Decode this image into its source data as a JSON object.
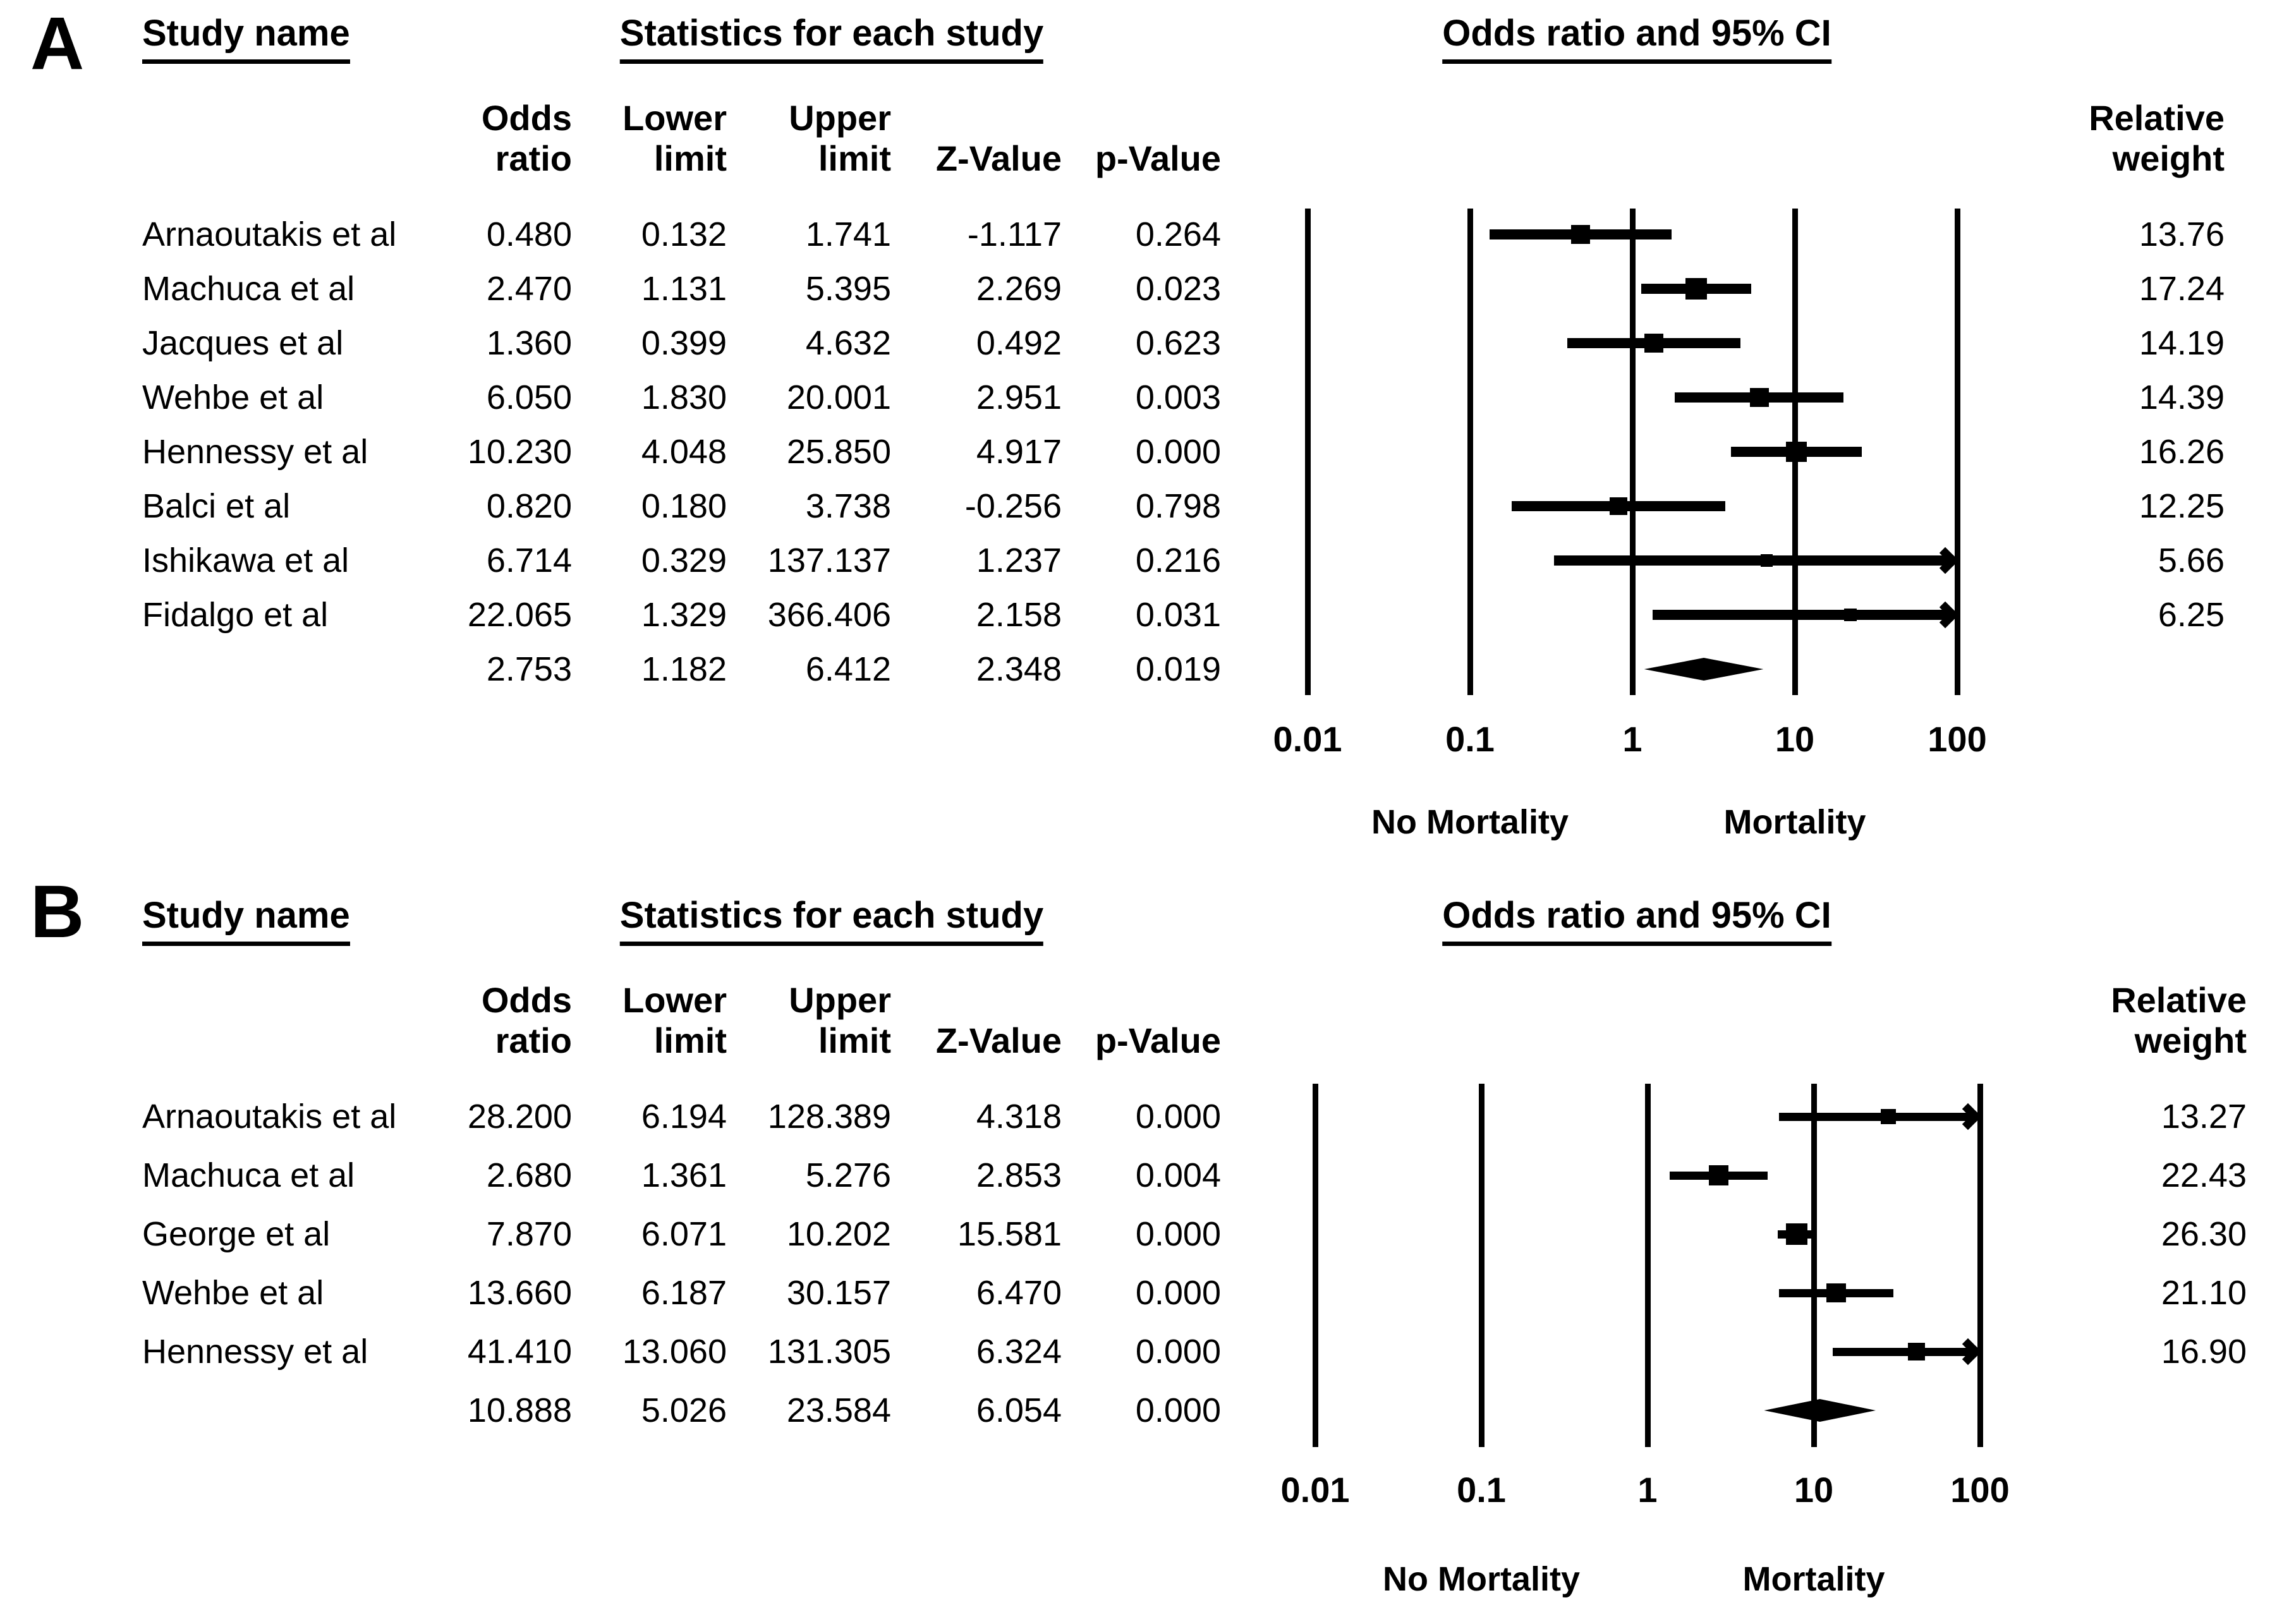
{
  "figure": {
    "background_color": "#ffffff",
    "ink_color": "#000000"
  },
  "panels": [
    {
      "label": "A",
      "headers": {
        "study": "Study name",
        "stats": "Statistics for each study",
        "plot": "Odds ratio and 95% CI"
      },
      "columns": {
        "or": [
          "Odds",
          "ratio"
        ],
        "ll": [
          "Lower",
          "limit"
        ],
        "ul": [
          "Upper",
          "limit"
        ],
        "z": "Z-Value",
        "p": "p-Value",
        "weight": [
          "Relative",
          "weight"
        ]
      },
      "axis": {
        "ticks": [
          "0.01",
          "0.1",
          "1",
          "10",
          "100"
        ],
        "left_label": "No Mortality",
        "right_label": "Mortality"
      },
      "rows": [
        {
          "name": "Arnaoutakis et al",
          "or": "0.480",
          "ll": "0.132",
          "ul": "1.741",
          "z": "-1.117",
          "p": "0.264",
          "weight": "13.76"
        },
        {
          "name": "Machuca et al",
          "or": "2.470",
          "ll": "1.131",
          "ul": "5.395",
          "z": "2.269",
          "p": "0.023",
          "weight": "17.24"
        },
        {
          "name": "Jacques et al",
          "or": "1.360",
          "ll": "0.399",
          "ul": "4.632",
          "z": "0.492",
          "p": "0.623",
          "weight": "14.19"
        },
        {
          "name": "Wehbe et al",
          "or": "6.050",
          "ll": "1.830",
          "ul": "20.001",
          "z": "2.951",
          "p": "0.003",
          "weight": "14.39"
        },
        {
          "name": "Hennessy et al",
          "or": "10.230",
          "ll": "4.048",
          "ul": "25.850",
          "z": "4.917",
          "p": "0.000",
          "weight": "16.26"
        },
        {
          "name": "Balci et al",
          "or": "0.820",
          "ll": "0.180",
          "ul": "3.738",
          "z": "-0.256",
          "p": "0.798",
          "weight": "12.25"
        },
        {
          "name": "Ishikawa et al",
          "or": "6.714",
          "ll": "0.329",
          "ul": "137.137",
          "z": "1.237",
          "p": "0.216",
          "weight": "5.66"
        },
        {
          "name": "Fidalgo et al",
          "or": "22.065",
          "ll": "1.329",
          "ul": "366.406",
          "z": "2.158",
          "p": "0.031",
          "weight": "6.25"
        }
      ],
      "summary": {
        "or": "2.753",
        "ll": "1.182",
        "ul": "6.412",
        "z": "2.348",
        "p": "0.019"
      }
    },
    {
      "label": "B",
      "headers": {
        "study": "Study name",
        "stats": "Statistics for each study",
        "plot": "Odds ratio and 95% CI"
      },
      "columns": {
        "or": [
          "Odds",
          "ratio"
        ],
        "ll": [
          "Lower",
          "limit"
        ],
        "ul": [
          "Upper",
          "limit"
        ],
        "z": "Z-Value",
        "p": "p-Value",
        "weight": [
          "Relative",
          "weight"
        ]
      },
      "axis": {
        "ticks": [
          "0.01",
          "0.1",
          "1",
          "10",
          "100"
        ],
        "left_label": "No Mortality",
        "right_label": "Mortality"
      },
      "rows": [
        {
          "name": "Arnaoutakis et al",
          "or": "28.200",
          "ll": "6.194",
          "ul": "128.389",
          "z": "4.318",
          "p": "0.000",
          "weight": "13.27"
        },
        {
          "name": "Machuca et al",
          "or": "2.680",
          "ll": "1.361",
          "ul": "5.276",
          "z": "2.853",
          "p": "0.004",
          "weight": "22.43"
        },
        {
          "name": "George et al",
          "or": "7.870",
          "ll": "6.071",
          "ul": "10.202",
          "z": "15.581",
          "p": "0.000",
          "weight": "26.30"
        },
        {
          "name": "Wehbe et al",
          "or": "13.660",
          "ll": "6.187",
          "ul": "30.157",
          "z": "6.470",
          "p": "0.000",
          "weight": "21.10"
        },
        {
          "name": "Hennessy et al",
          "or": "41.410",
          "ll": "13.060",
          "ul": "131.305",
          "z": "6.324",
          "p": "0.000",
          "weight": "16.90"
        }
      ],
      "summary": {
        "or": "10.888",
        "ll": "5.026",
        "ul": "23.584",
        "z": "6.054",
        "p": "0.000"
      }
    }
  ],
  "chart_data": [
    {
      "type": "scatter",
      "variant": "forest-plot",
      "panel": "A",
      "title": "Odds ratio and 95% CI",
      "x_scale": "log10",
      "x_ticks": [
        0.01,
        0.1,
        1,
        10,
        100
      ],
      "xlim": [
        0.01,
        100
      ],
      "x_direction_labels": {
        "left": "No Mortality",
        "right": "Mortality"
      },
      "studies": [
        {
          "name": "Arnaoutakis et al",
          "odds_ratio": 0.48,
          "lower_limit": 0.132,
          "upper_limit": 1.741,
          "z_value": -1.117,
          "p_value": 0.264,
          "relative_weight": 13.76
        },
        {
          "name": "Machuca et al",
          "odds_ratio": 2.47,
          "lower_limit": 1.131,
          "upper_limit": 5.395,
          "z_value": 2.269,
          "p_value": 0.023,
          "relative_weight": 17.24
        },
        {
          "name": "Jacques et al",
          "odds_ratio": 1.36,
          "lower_limit": 0.399,
          "upper_limit": 4.632,
          "z_value": 0.492,
          "p_value": 0.623,
          "relative_weight": 14.19
        },
        {
          "name": "Wehbe et al",
          "odds_ratio": 6.05,
          "lower_limit": 1.83,
          "upper_limit": 20.001,
          "z_value": 2.951,
          "p_value": 0.003,
          "relative_weight": 14.39
        },
        {
          "name": "Hennessy et al",
          "odds_ratio": 10.23,
          "lower_limit": 4.048,
          "upper_limit": 25.85,
          "z_value": 4.917,
          "p_value": 0.0,
          "relative_weight": 16.26
        },
        {
          "name": "Balci et al",
          "odds_ratio": 0.82,
          "lower_limit": 0.18,
          "upper_limit": 3.738,
          "z_value": -0.256,
          "p_value": 0.798,
          "relative_weight": 12.25
        },
        {
          "name": "Ishikawa et al",
          "odds_ratio": 6.714,
          "lower_limit": 0.329,
          "upper_limit": 137.137,
          "z_value": 1.237,
          "p_value": 0.216,
          "relative_weight": 5.66
        },
        {
          "name": "Fidalgo et al",
          "odds_ratio": 22.065,
          "lower_limit": 1.329,
          "upper_limit": 366.406,
          "z_value": 2.158,
          "p_value": 0.031,
          "relative_weight": 6.25
        }
      ],
      "summary": {
        "odds_ratio": 2.753,
        "lower_limit": 1.182,
        "upper_limit": 6.412,
        "z_value": 2.348,
        "p_value": 0.019
      }
    },
    {
      "type": "scatter",
      "variant": "forest-plot",
      "panel": "B",
      "title": "Odds ratio and 95% CI",
      "x_scale": "log10",
      "x_ticks": [
        0.01,
        0.1,
        1,
        10,
        100
      ],
      "xlim": [
        0.01,
        100
      ],
      "x_direction_labels": {
        "left": "No Mortality",
        "right": "Mortality"
      },
      "studies": [
        {
          "name": "Arnaoutakis et al",
          "odds_ratio": 28.2,
          "lower_limit": 6.194,
          "upper_limit": 128.389,
          "z_value": 4.318,
          "p_value": 0.0,
          "relative_weight": 13.27
        },
        {
          "name": "Machuca et al",
          "odds_ratio": 2.68,
          "lower_limit": 1.361,
          "upper_limit": 5.276,
          "z_value": 2.853,
          "p_value": 0.004,
          "relative_weight": 22.43
        },
        {
          "name": "George et al",
          "odds_ratio": 7.87,
          "lower_limit": 6.071,
          "upper_limit": 10.202,
          "z_value": 15.581,
          "p_value": 0.0,
          "relative_weight": 26.3
        },
        {
          "name": "Wehbe et al",
          "odds_ratio": 13.66,
          "lower_limit": 6.187,
          "upper_limit": 30.157,
          "z_value": 6.47,
          "p_value": 0.0,
          "relative_weight": 21.1
        },
        {
          "name": "Hennessy et al",
          "odds_ratio": 41.41,
          "lower_limit": 13.06,
          "upper_limit": 131.305,
          "z_value": 6.324,
          "p_value": 0.0,
          "relative_weight": 16.9
        }
      ],
      "summary": {
        "odds_ratio": 10.888,
        "lower_limit": 5.026,
        "upper_limit": 23.584,
        "z_value": 6.054,
        "p_value": 0.0
      }
    }
  ]
}
